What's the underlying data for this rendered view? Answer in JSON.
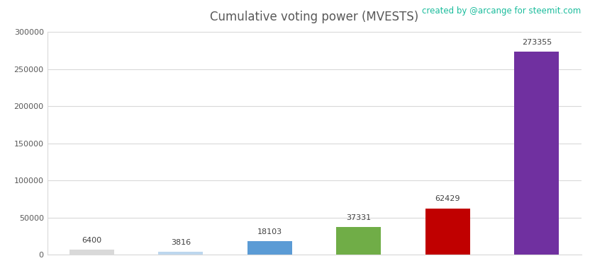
{
  "chart_data": {
    "type": "bar",
    "title": "Cumulative voting power (MVESTS)",
    "annotation": "created by @arcange for steemit.com",
    "categories": [
      null,
      null,
      null,
      null,
      null,
      null
    ],
    "values": [
      6400,
      3816,
      18103,
      37331,
      62429,
      273355
    ],
    "colors": [
      "#d9d9d9",
      "#bdd7ee",
      "#5b9bd5",
      "#70ad47",
      "#c00000",
      "#7030a0"
    ],
    "ylim": [
      0,
      300000
    ],
    "yticks": [
      0,
      50000,
      100000,
      150000,
      200000,
      250000,
      300000
    ],
    "grid": true,
    "data_labels": true,
    "tick_labels": "y"
  }
}
